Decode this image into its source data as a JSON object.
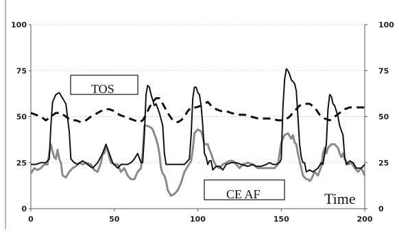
{
  "chart_data": {
    "type": "line",
    "xlim": [
      0,
      200
    ],
    "ylim": [
      0,
      100
    ],
    "x_ticks": [
      "0",
      "50",
      "100",
      "150",
      "200"
    ],
    "y_ticks_left": [
      "0",
      "25",
      "50",
      "75",
      "100"
    ],
    "y_ticks_right": [
      "0",
      "25",
      "50",
      "75",
      "100"
    ],
    "grid": "horizontal dotted",
    "annotations": [
      {
        "key": "tos",
        "text": "TOS"
      },
      {
        "key": "ceaf",
        "text": "CE AF"
      },
      {
        "key": "time",
        "text": "Time"
      }
    ],
    "series": [
      {
        "style": "solid-black",
        "color": "#111111",
        "points": [
          [
            0,
            24
          ],
          [
            3,
            24
          ],
          [
            6,
            25
          ],
          [
            9,
            25
          ],
          [
            11,
            27
          ],
          [
            12,
            45
          ],
          [
            13,
            58
          ],
          [
            15,
            62
          ],
          [
            17,
            63
          ],
          [
            19,
            60
          ],
          [
            21,
            57
          ],
          [
            23,
            42
          ],
          [
            24,
            27
          ],
          [
            26,
            25
          ],
          [
            28,
            24
          ],
          [
            31,
            26
          ],
          [
            34,
            24
          ],
          [
            37,
            22
          ],
          [
            40,
            25
          ],
          [
            43,
            30
          ],
          [
            45,
            35
          ],
          [
            47,
            30
          ],
          [
            49,
            25
          ],
          [
            52,
            22
          ],
          [
            54,
            24
          ],
          [
            56,
            24
          ],
          [
            58,
            24
          ],
          [
            60,
            25
          ],
          [
            62,
            27
          ],
          [
            64,
            30
          ],
          [
            66,
            25
          ],
          [
            67,
            25
          ],
          [
            68,
            40
          ],
          [
            69,
            62
          ],
          [
            70,
            67
          ],
          [
            71,
            66
          ],
          [
            72,
            62
          ],
          [
            73,
            59
          ],
          [
            74,
            56
          ],
          [
            75,
            57
          ],
          [
            77,
            52
          ],
          [
            79,
            45
          ],
          [
            80,
            30
          ],
          [
            81,
            24
          ],
          [
            84,
            24
          ],
          [
            88,
            24
          ],
          [
            92,
            24
          ],
          [
            94,
            26
          ],
          [
            95,
            27
          ],
          [
            96,
            40
          ],
          [
            97,
            60
          ],
          [
            98,
            66
          ],
          [
            99,
            66
          ],
          [
            100,
            63
          ],
          [
            101,
            62
          ],
          [
            102,
            56
          ],
          [
            103,
            45
          ],
          [
            104,
            30
          ],
          [
            105,
            28
          ],
          [
            106,
            24
          ],
          [
            107,
            26
          ],
          [
            108,
            26
          ],
          [
            109,
            21
          ],
          [
            111,
            23
          ],
          [
            113,
            23
          ],
          [
            115,
            21
          ],
          [
            117,
            24
          ],
          [
            120,
            25
          ],
          [
            123,
            25
          ],
          [
            126,
            24
          ],
          [
            130,
            23
          ],
          [
            133,
            24
          ],
          [
            135,
            23
          ],
          [
            138,
            23
          ],
          [
            141,
            24
          ],
          [
            143,
            25
          ],
          [
            145,
            24
          ],
          [
            147,
            24
          ],
          [
            149,
            25
          ],
          [
            150,
            27
          ],
          [
            151,
            55
          ],
          [
            152,
            70
          ],
          [
            153,
            76
          ],
          [
            154,
            75
          ],
          [
            155,
            73
          ],
          [
            156,
            70
          ],
          [
            158,
            68
          ],
          [
            159,
            64
          ],
          [
            160,
            50
          ],
          [
            161,
            35
          ],
          [
            162,
            28
          ],
          [
            163,
            25
          ],
          [
            164,
            25
          ],
          [
            165,
            20
          ],
          [
            167,
            21
          ],
          [
            169,
            20
          ],
          [
            172,
            22
          ],
          [
            174,
            25
          ],
          [
            175,
            24
          ],
          [
            176,
            30
          ],
          [
            177,
            35
          ],
          [
            178,
            54
          ],
          [
            179,
            62
          ],
          [
            180,
            61
          ],
          [
            181,
            57
          ],
          [
            182,
            56
          ],
          [
            184,
            50
          ],
          [
            185,
            45
          ],
          [
            187,
            40
          ],
          [
            188,
            28
          ],
          [
            189,
            24
          ],
          [
            191,
            26
          ],
          [
            193,
            25
          ],
          [
            195,
            22
          ],
          [
            198,
            22
          ],
          [
            200,
            24
          ]
        ]
      },
      {
        "style": "dashed-black",
        "color": "#111111",
        "points": [
          [
            0,
            52
          ],
          [
            3,
            51
          ],
          [
            6,
            50
          ],
          [
            9,
            48
          ],
          [
            12,
            50
          ],
          [
            15,
            52
          ],
          [
            18,
            52
          ],
          [
            21,
            50
          ],
          [
            24,
            48
          ],
          [
            27,
            48
          ],
          [
            30,
            47
          ],
          [
            33,
            48
          ],
          [
            36,
            50
          ],
          [
            40,
            52
          ],
          [
            44,
            54
          ],
          [
            47,
            54
          ],
          [
            50,
            53
          ],
          [
            53,
            51
          ],
          [
            56,
            50
          ],
          [
            59,
            49
          ],
          [
            62,
            48
          ],
          [
            65,
            47
          ],
          [
            67,
            48
          ],
          [
            69,
            51
          ],
          [
            71,
            55
          ],
          [
            73,
            58
          ],
          [
            75,
            60
          ],
          [
            77,
            60
          ],
          [
            79,
            57
          ],
          [
            82,
            52
          ],
          [
            85,
            48
          ],
          [
            88,
            47
          ],
          [
            90,
            48
          ],
          [
            92,
            50
          ],
          [
            94,
            53
          ],
          [
            96,
            55
          ],
          [
            99,
            55
          ],
          [
            102,
            56
          ],
          [
            104,
            57
          ],
          [
            106,
            58
          ],
          [
            108,
            56
          ],
          [
            111,
            54
          ],
          [
            114,
            53
          ],
          [
            117,
            53
          ],
          [
            120,
            52
          ],
          [
            124,
            51
          ],
          [
            128,
            51
          ],
          [
            132,
            50
          ],
          [
            136,
            49
          ],
          [
            140,
            49
          ],
          [
            144,
            49
          ],
          [
            148,
            48
          ],
          [
            152,
            48
          ],
          [
            155,
            50
          ],
          [
            158,
            53
          ],
          [
            161,
            56
          ],
          [
            164,
            57
          ],
          [
            167,
            57
          ],
          [
            170,
            55
          ],
          [
            173,
            51
          ],
          [
            176,
            49
          ],
          [
            179,
            48
          ],
          [
            182,
            50
          ],
          [
            185,
            52
          ],
          [
            188,
            54
          ],
          [
            191,
            55
          ],
          [
            195,
            55
          ],
          [
            198,
            55
          ],
          [
            200,
            55
          ]
        ]
      },
      {
        "style": "solid-gray",
        "color": "#8a8a8a",
        "points": [
          [
            0,
            19
          ],
          [
            2,
            22
          ],
          [
            4,
            21
          ],
          [
            6,
            22
          ],
          [
            8,
            24
          ],
          [
            10,
            24
          ],
          [
            11,
            30
          ],
          [
            12,
            35
          ],
          [
            13,
            31
          ],
          [
            14,
            28
          ],
          [
            15,
            27
          ],
          [
            16,
            32
          ],
          [
            17,
            27
          ],
          [
            18,
            25
          ],
          [
            19,
            18
          ],
          [
            21,
            17
          ],
          [
            23,
            20
          ],
          [
            25,
            22
          ],
          [
            27,
            23
          ],
          [
            29,
            25
          ],
          [
            31,
            24
          ],
          [
            33,
            25
          ],
          [
            36,
            24
          ],
          [
            38,
            21
          ],
          [
            40,
            20
          ],
          [
            42,
            25
          ],
          [
            43,
            30
          ],
          [
            44,
            30
          ],
          [
            45,
            33
          ],
          [
            46,
            32
          ],
          [
            47,
            28
          ],
          [
            48,
            25
          ],
          [
            50,
            24
          ],
          [
            52,
            24
          ],
          [
            54,
            20
          ],
          [
            56,
            22
          ],
          [
            58,
            18
          ],
          [
            60,
            16
          ],
          [
            62,
            16
          ],
          [
            64,
            20
          ],
          [
            66,
            22
          ],
          [
            67,
            30
          ],
          [
            68,
            45
          ],
          [
            70,
            45
          ],
          [
            72,
            44
          ],
          [
            73,
            43
          ],
          [
            75,
            38
          ],
          [
            76,
            35
          ],
          [
            77,
            30
          ],
          [
            78,
            22
          ],
          [
            79,
            19
          ],
          [
            80,
            18
          ],
          [
            81,
            15
          ],
          [
            82,
            10
          ],
          [
            84,
            7
          ],
          [
            86,
            8
          ],
          [
            88,
            10
          ],
          [
            90,
            14
          ],
          [
            92,
            20
          ],
          [
            94,
            23
          ],
          [
            96,
            26
          ],
          [
            97,
            32
          ],
          [
            98,
            41
          ],
          [
            100,
            43
          ],
          [
            102,
            42
          ],
          [
            103,
            39
          ],
          [
            104,
            35
          ],
          [
            106,
            35
          ],
          [
            107,
            32
          ],
          [
            108,
            30
          ],
          [
            109,
            27
          ],
          [
            111,
            23
          ],
          [
            113,
            22
          ],
          [
            115,
            24
          ],
          [
            117,
            25
          ],
          [
            119,
            26
          ],
          [
            121,
            26
          ],
          [
            123,
            24
          ],
          [
            125,
            22
          ],
          [
            127,
            24
          ],
          [
            130,
            25
          ],
          [
            133,
            24
          ],
          [
            136,
            22
          ],
          [
            140,
            22
          ],
          [
            143,
            22
          ],
          [
            146,
            22
          ],
          [
            148,
            24
          ],
          [
            149,
            30
          ],
          [
            150,
            36
          ],
          [
            152,
            40
          ],
          [
            154,
            41
          ],
          [
            156,
            38
          ],
          [
            157,
            40
          ],
          [
            158,
            36
          ],
          [
            159,
            35
          ],
          [
            160,
            30
          ],
          [
            161,
            26
          ],
          [
            162,
            22
          ],
          [
            163,
            18
          ],
          [
            164,
            17
          ],
          [
            165,
            16
          ],
          [
            166,
            16
          ],
          [
            167,
            15
          ],
          [
            168,
            16
          ],
          [
            170,
            20
          ],
          [
            172,
            18
          ],
          [
            174,
            23
          ],
          [
            175,
            30
          ],
          [
            176,
            33
          ],
          [
            177,
            30
          ],
          [
            178,
            33
          ],
          [
            180,
            35
          ],
          [
            182,
            35
          ],
          [
            184,
            33
          ],
          [
            185,
            30
          ],
          [
            186,
            28
          ],
          [
            187,
            30
          ],
          [
            188,
            27
          ],
          [
            190,
            24
          ],
          [
            192,
            25
          ],
          [
            194,
            22
          ],
          [
            196,
            20
          ],
          [
            198,
            22
          ],
          [
            200,
            18
          ]
        ]
      }
    ]
  }
}
